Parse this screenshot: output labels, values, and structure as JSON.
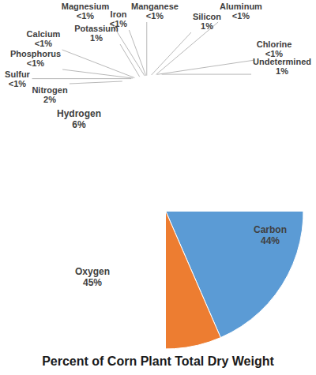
{
  "chart_data": {
    "type": "pie",
    "title": "Percent of Corn Plant Total Dry Weight",
    "categories": [
      "Carbon",
      "Oxygen",
      "Hydrogen",
      "Nitrogen",
      "Sulfur",
      "Phosphorus",
      "Calcium",
      "Potassium",
      "Magnesium",
      "Iron",
      "Manganese",
      "Silicon",
      "Aluminum",
      "Chlorine",
      "Undetermined"
    ],
    "values": [
      44,
      45,
      6,
      2,
      0.2,
      0.2,
      0.2,
      1,
      0.2,
      0.1,
      0.1,
      1,
      0.1,
      0.1,
      1
    ],
    "value_labels": [
      "44%",
      "45%",
      "6%",
      "2%",
      "<1%",
      "<1%",
      "<1%",
      "1%",
      "<1%",
      "<1%",
      "<1%",
      "1%",
      "<1%",
      "<1%",
      "1%"
    ],
    "colors": [
      "#5b9bd5",
      "#ed7d31",
      "#a5a5a5",
      "#ffc000",
      "#4472c4",
      "#70ad47",
      "#264478",
      "#9e480e",
      "#636363",
      "#997300",
      "#255e91",
      "#43682b",
      "#698ed0",
      "#f1975a",
      "#b7b7b7"
    ],
    "data_labels": true
  }
}
